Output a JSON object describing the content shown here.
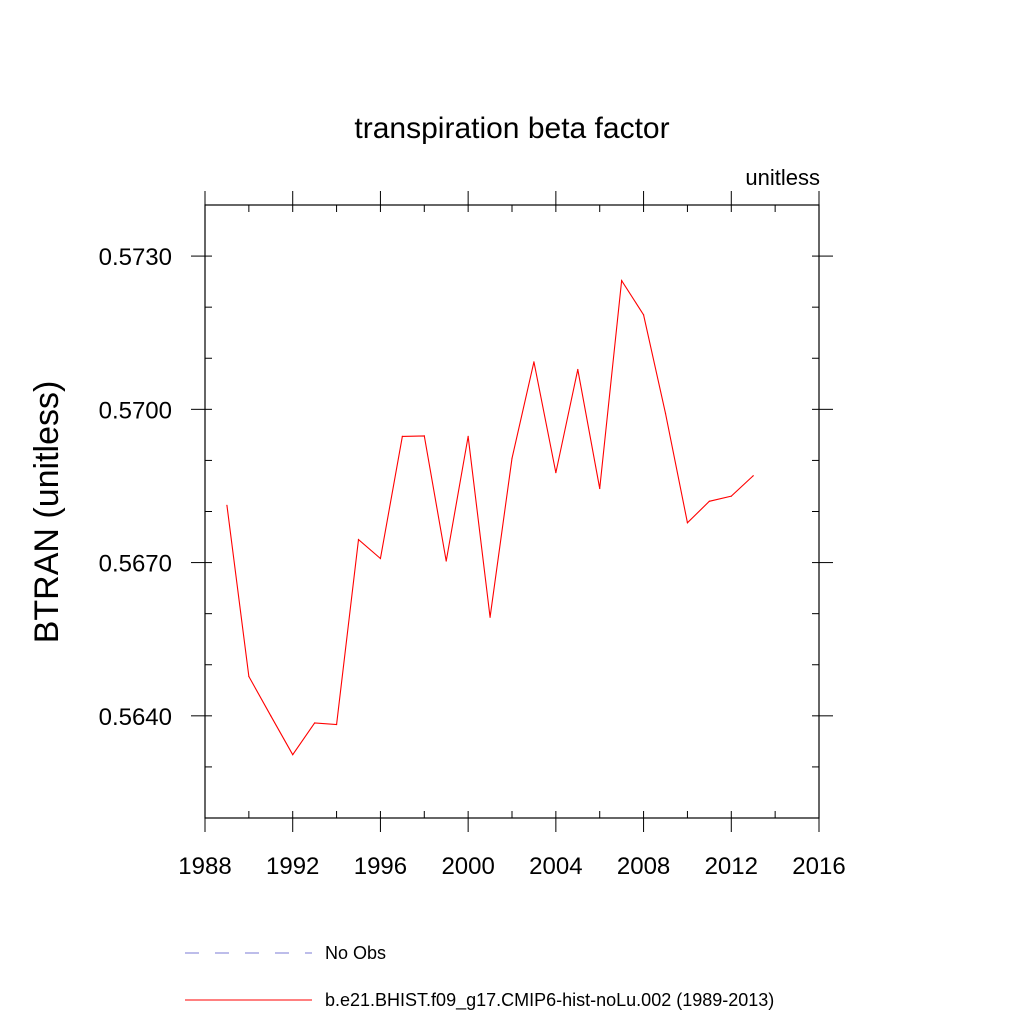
{
  "chart_data": {
    "type": "line",
    "title": "transpiration beta factor",
    "units_label": "unitless",
    "ylabel": "BTRAN  (unitless)",
    "xlabel": "",
    "xlim": [
      1988,
      2016
    ],
    "ylim": [
      0.562,
      0.574
    ],
    "x_ticks": [
      1988,
      1992,
      1996,
      2000,
      2004,
      2008,
      2012,
      2016
    ],
    "x_tick_labels": [
      "1988",
      "1992",
      "1996",
      "2000",
      "2004",
      "2008",
      "2012",
      "2016"
    ],
    "x_minor_step": 2,
    "y_ticks": [
      0.564,
      0.567,
      0.57,
      0.573
    ],
    "y_tick_labels": [
      "0.5640",
      "0.5670",
      "0.5700",
      "0.5730"
    ],
    "y_minor_step": 0.001,
    "grid": false,
    "legend_position": "bottom",
    "legend": [
      {
        "label": "No Obs",
        "color": "#7b7bd6",
        "style": "dashed"
      },
      {
        "label": "b.e21.BHIST.f09_g17.CMIP6-hist-noLu.002 (1989-2013)",
        "color": "#ff0000",
        "style": "solid"
      }
    ],
    "series": [
      {
        "name": "b.e21.BHIST.f09_g17.CMIP6-hist-noLu.002 (1989-2013)",
        "color": "#ff0000",
        "x": [
          1989,
          1990,
          1991,
          1992,
          1993,
          1994,
          1995,
          1996,
          1997,
          1998,
          1999,
          2000,
          2001,
          2002,
          2003,
          2004,
          2005,
          2006,
          2007,
          2008,
          2009,
          2010,
          2011,
          2012,
          2013
        ],
        "y": [
          0.56812,
          0.56477,
          0.564,
          0.56324,
          0.56386,
          0.56383,
          0.56745,
          0.56708,
          0.56947,
          0.56948,
          0.56703,
          0.56947,
          0.56593,
          0.56904,
          0.57093,
          0.56876,
          0.57078,
          0.56845,
          0.57252,
          0.57185,
          0.56992,
          0.56778,
          0.5682,
          0.5683,
          0.5687
        ]
      }
    ]
  }
}
